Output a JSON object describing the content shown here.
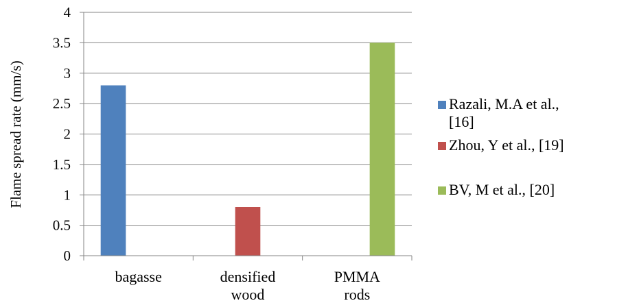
{
  "chart_data": {
    "type": "bar",
    "title": "",
    "ylabel": "Flame spread rate (mm/s)",
    "xlabel": "",
    "ylim": [
      0,
      4
    ],
    "yticks": [
      "0",
      "0.5",
      "1",
      "1.5",
      "2",
      "2.5",
      "3",
      "3.5",
      "4"
    ],
    "categories": [
      [
        "bagasse"
      ],
      [
        "densified",
        "wood"
      ],
      [
        "PMMA",
        "rods"
      ]
    ],
    "series": [
      {
        "name": [
          "Razali, M.A et al.,",
          "[16]"
        ],
        "color": "#4f81bd",
        "values": [
          2.8,
          null,
          null
        ]
      },
      {
        "name": [
          "Zhou, Y et al., [19]"
        ],
        "color": "#c0504d",
        "values": [
          null,
          0.8,
          null
        ]
      },
      {
        "name": [
          "BV, M et al., [20]"
        ],
        "color": "#9bbb59",
        "values": [
          null,
          null,
          3.5
        ]
      }
    ],
    "grid": true,
    "legend": "right"
  }
}
